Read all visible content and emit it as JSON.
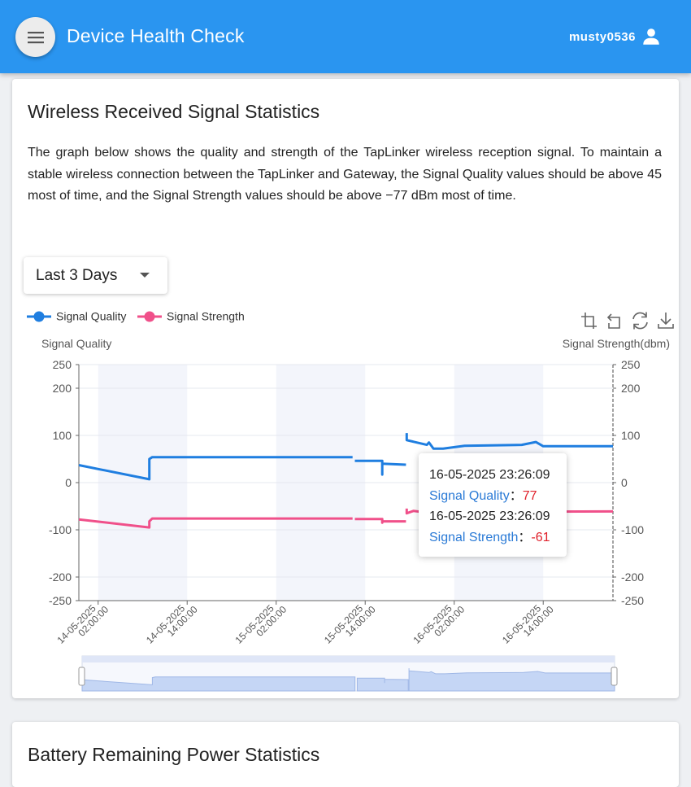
{
  "app": {
    "title": "Device Health Check",
    "username": "musty0536"
  },
  "card1": {
    "title": "Wireless Received Signal Statistics",
    "description": "The graph below shows the quality and strength of the TapLinker wireless reception signal. To maintain a stable wireless connection between the TapLinker and Gateway, the Signal Quality values should be above 45 most of time, and the Signal Strength values should be above −77 dBm most of time.",
    "range_label": "Last 3 Days"
  },
  "card2": {
    "title": "Battery Remaining Power Statistics"
  },
  "tooltip": {
    "time1": "16-05-2025 23:26:09",
    "name1": "Signal Quality",
    "value1": "77",
    "time2": "16-05-2025 23:26:09",
    "name2": "Signal Strength",
    "value2": "-61",
    "separator": "："
  },
  "colors": {
    "quality": "#1f7ee0",
    "strength": "#f0508a",
    "appbar": "#2a95f0"
  },
  "chart_data": {
    "type": "line",
    "legend": [
      "Signal Quality",
      "Signal Strength"
    ],
    "y_left_label": "Signal Quality",
    "y_right_label": "Signal Strength(dbm)",
    "ylim": [
      -250,
      250
    ],
    "y_ticks": [
      250,
      200,
      100,
      0,
      -100,
      -200,
      -250
    ],
    "x_ticks": [
      "14-05-2025 02:00:00",
      "14-05-2025 14:00:00",
      "15-05-2025 02:00:00",
      "15-05-2025 14:00:00",
      "16-05-2025 02:00:00",
      "16-05-2025 14:00:00"
    ],
    "x_range_hours": [
      -2.6,
      69.4
    ],
    "series": [
      {
        "name": "Signal Quality",
        "segments": [
          [
            [
              -2.6,
              37
            ],
            [
              6.9,
              7
            ],
            [
              6.9,
              50
            ],
            [
              7.3,
              54
            ],
            [
              34.3,
              54
            ]
          ],
          [
            [
              34.6,
              46
            ],
            [
              38.3,
              46
            ],
            [
              38.3,
              17
            ],
            [
              38.3,
              40
            ],
            [
              41.5,
              38
            ]
          ],
          [
            [
              41.6,
              105
            ],
            [
              41.6,
              90
            ],
            [
              44.3,
              80
            ],
            [
              44.6,
              85
            ],
            [
              45.2,
              72
            ],
            [
              46.5,
              72
            ],
            [
              49.4,
              78
            ],
            [
              57.1,
              80
            ],
            [
              59.0,
              86
            ],
            [
              60.0,
              77
            ],
            [
              69.4,
              77
            ]
          ]
        ]
      },
      {
        "name": "Signal Strength",
        "segments": [
          [
            [
              -2.6,
              -78
            ],
            [
              6.9,
              -95
            ],
            [
              6.9,
              -82
            ],
            [
              7.3,
              -76
            ],
            [
              34.3,
              -76
            ]
          ],
          [
            [
              34.6,
              -77
            ],
            [
              38.3,
              -77
            ],
            [
              38.3,
              -85
            ],
            [
              38.3,
              -82
            ],
            [
              41.5,
              -82
            ]
          ],
          [
            [
              41.6,
              -55
            ],
            [
              41.6,
              -65
            ],
            [
              42.5,
              -60
            ],
            [
              44.6,
              -64
            ],
            [
              45.5,
              -60
            ],
            [
              47.5,
              -62
            ],
            [
              69.4,
              -61
            ]
          ]
        ]
      }
    ],
    "tooltip_point": {
      "time": "16-05-2025 23:26:09",
      "quality": 77,
      "strength": -61
    }
  }
}
